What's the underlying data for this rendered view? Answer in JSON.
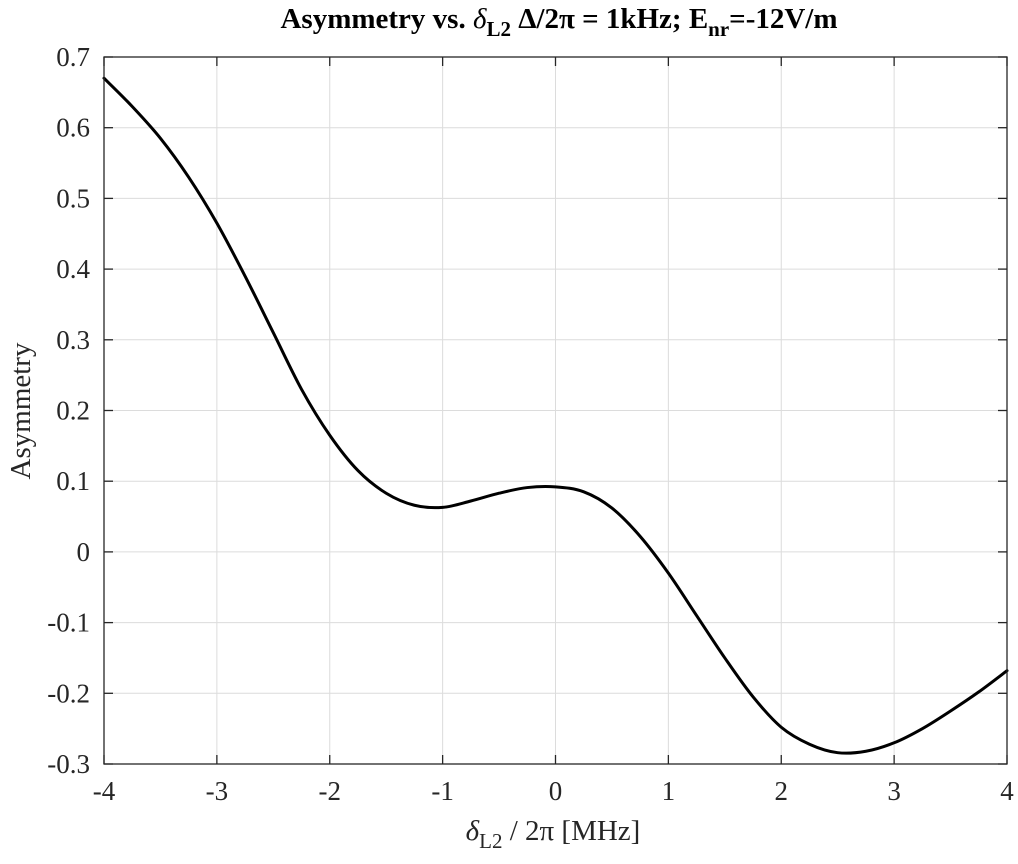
{
  "chart_data": {
    "type": "line",
    "title": {
      "part1": "Asymmetry vs. ",
      "delta_symbol": "δ",
      "delta_sub": "L2",
      "part2": " Δ/2π = 1kHz; E",
      "e_sub": "nr",
      "part3": "=-12V/m"
    },
    "xlabel": {
      "delta_symbol": "δ",
      "delta_sub": "L2",
      "rest": " / 2π [MHz]"
    },
    "ylabel": "Asymmetry",
    "xlim": [
      -4,
      4
    ],
    "ylim": [
      -0.3,
      0.7
    ],
    "x_ticks": [
      "-4",
      "-3",
      "-2",
      "-1",
      "0",
      "1",
      "2",
      "3",
      "4"
    ],
    "y_ticks": [
      "-0.3",
      "-0.2",
      "-0.1",
      "0",
      "0.1",
      "0.2",
      "0.3",
      "0.4",
      "0.5",
      "0.6",
      "0.7"
    ],
    "grid": true,
    "series": [
      {
        "color": "#000000",
        "x": [
          -4.0,
          -3.75,
          -3.5,
          -3.25,
          -3.0,
          -2.75,
          -2.5,
          -2.25,
          -2.0,
          -1.75,
          -1.5,
          -1.25,
          -1.0,
          -0.75,
          -0.5,
          -0.25,
          0.0,
          0.25,
          0.5,
          0.75,
          1.0,
          1.25,
          1.5,
          1.75,
          2.0,
          2.25,
          2.5,
          2.75,
          3.0,
          3.25,
          3.5,
          3.75,
          4.0
        ],
        "y": [
          0.67,
          0.63,
          0.585,
          0.53,
          0.465,
          0.39,
          0.31,
          0.23,
          0.165,
          0.115,
          0.083,
          0.066,
          0.063,
          0.072,
          0.083,
          0.091,
          0.092,
          0.085,
          0.062,
          0.022,
          -0.03,
          -0.09,
          -0.15,
          -0.205,
          -0.248,
          -0.272,
          -0.284,
          -0.282,
          -0.27,
          -0.25,
          -0.225,
          -0.198,
          -0.168
        ]
      }
    ]
  }
}
